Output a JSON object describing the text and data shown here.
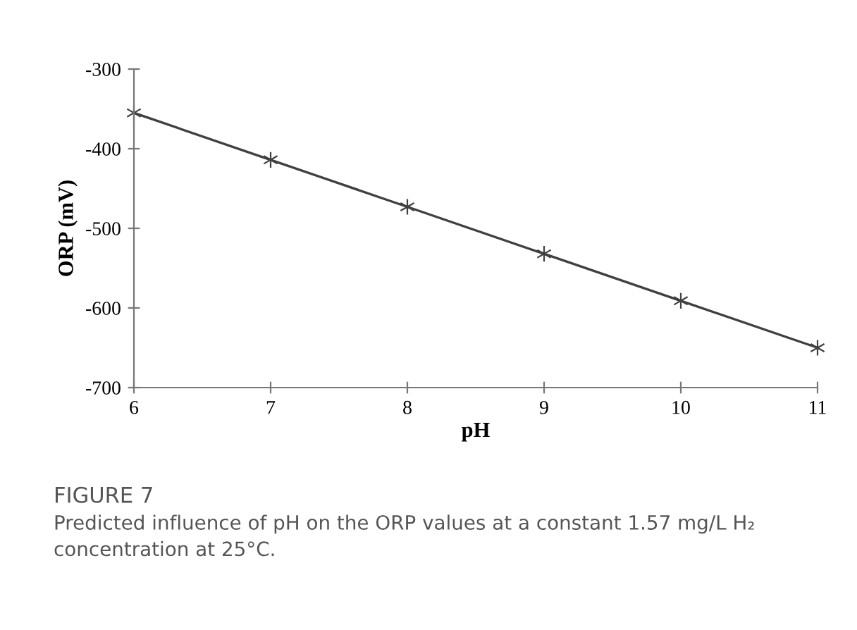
{
  "chart_data": {
    "type": "line",
    "xlabel": "pH",
    "ylabel": "ORP (mV)",
    "x": [
      6,
      7,
      8,
      9,
      10,
      11
    ],
    "series": [
      {
        "color": "#404040",
        "values": [
          -355,
          -414,
          -473,
          -532,
          -591,
          -650
        ]
      }
    ],
    "xlim": [
      6,
      11
    ],
    "xticks": [
      6,
      7,
      8,
      9,
      10,
      11
    ],
    "ylim": [
      -700,
      -300
    ],
    "yticks": [
      -700,
      -600,
      -500,
      -400,
      -300
    ],
    "grid": false,
    "marker": "cross",
    "line_style": "solid",
    "annotations": [
      "FIGURE 7",
      "Predicted influence of pH on the ORP values at a constant 1.57 mg/L H₂ concentration at 25°C."
    ]
  }
}
